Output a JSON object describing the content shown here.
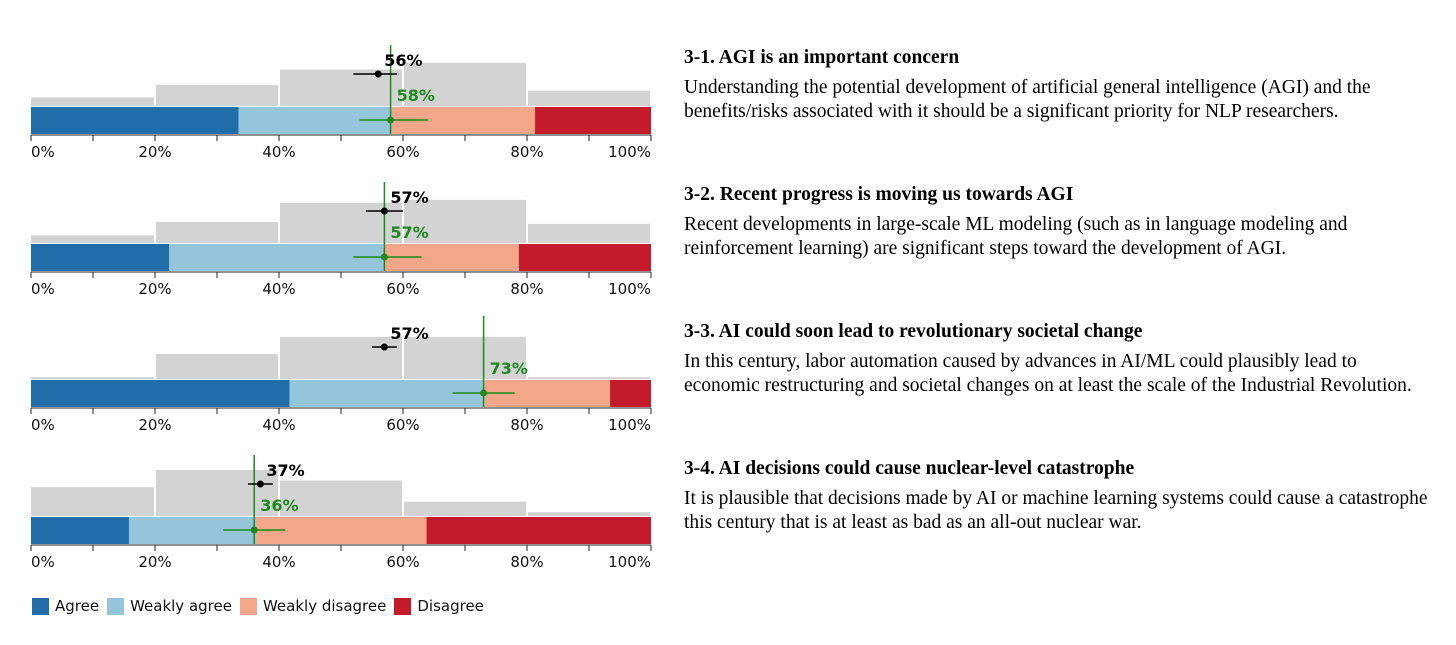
{
  "colors": {
    "agree": "#1f6eaa",
    "weakly_agree": "#95c5da",
    "weakly_disagree": "#f3a688",
    "disagree": "#c31b2a",
    "histogram": "#d3d3d3",
    "predicted": "#000000",
    "actual": "#1d8a1d"
  },
  "legend": [
    {
      "label": "Agree",
      "color": "#1f6eaa"
    },
    {
      "label": "Weakly agree",
      "color": "#95c5da"
    },
    {
      "label": "Weakly disagree",
      "color": "#f3a688"
    },
    {
      "label": "Disagree",
      "color": "#c31b2a"
    }
  ],
  "questions": [
    {
      "title": "3-1. AGI is an important concern",
      "text": "Understanding the potential development of artificial general intelligence (AGI) and the benefits/risks associated with it should be a significant priority for NLP researchers."
    },
    {
      "title": "3-2. Recent progress is moving us towards AGI",
      "text": "Recent developments in large-scale ML modeling (such as in language modeling and reinforcement learning) are significant steps toward the development of AGI."
    },
    {
      "title": "3-3. AI could soon lead to revolutionary societal change",
      "text": "In this century, labor automation caused by advances in AI/ML could plausibly lead to economic restructuring and societal changes on at least the scale of the Industrial Revolution."
    },
    {
      "title": "3-4. AI decisions could cause nuclear-level catastrophe",
      "text": "It is plausible that decisions made by AI or machine learning systems could cause a catastrophe this century that is at least as bad as an all-out nuclear war."
    }
  ],
  "chart_data": [
    {
      "type": "bar",
      "xlim": [
        0,
        100
      ],
      "tick_labels": [
        "0%",
        "20%",
        "40%",
        "60%",
        "80%",
        "100%"
      ],
      "histogram": {
        "bins": [
          "0-20%",
          "20-40%",
          "40-60%",
          "60-80%",
          "80-100%"
        ],
        "values": [
          9,
          22,
          38,
          45,
          16
        ]
      },
      "segments": {
        "Agree": 33.5,
        "Weakly agree": 24.7,
        "Weakly disagree": 23.1,
        "Disagree": 18.7
      },
      "predicted": {
        "value": 56,
        "label": "56%",
        "err": [
          52,
          59
        ]
      },
      "actual": {
        "value": 58,
        "label": "58%",
        "err": [
          53,
          64
        ]
      }
    },
    {
      "type": "bar",
      "xlim": [
        0,
        100
      ],
      "tick_labels": [
        "0%",
        "20%",
        "40%",
        "60%",
        "80%",
        "100%"
      ],
      "histogram": {
        "bins": [
          "0-20%",
          "20-40%",
          "40-60%",
          "60-80%",
          "80-100%"
        ],
        "values": [
          8,
          22,
          42,
          45,
          20
        ]
      },
      "segments": {
        "Agree": 22.3,
        "Weakly agree": 34.8,
        "Weakly disagree": 21.6,
        "Disagree": 21.3
      },
      "predicted": {
        "value": 57,
        "label": "57%",
        "err": [
          54,
          60
        ]
      },
      "actual": {
        "value": 57,
        "label": "57%",
        "err": [
          52,
          63
        ]
      }
    },
    {
      "type": "bar",
      "xlim": [
        0,
        100
      ],
      "tick_labels": [
        "0%",
        "20%",
        "40%",
        "60%",
        "80%",
        "100%"
      ],
      "histogram": {
        "bins": [
          "0-20%",
          "20-40%",
          "40-60%",
          "60-80%",
          "80-100%"
        ],
        "values": [
          2,
          26,
          44,
          44,
          2
        ]
      },
      "segments": {
        "Agree": 41.7,
        "Weakly agree": 31.5,
        "Weakly disagree": 20.2,
        "Disagree": 6.6
      },
      "predicted": {
        "value": 57,
        "label": "57%",
        "err": [
          55,
          59
        ]
      },
      "actual": {
        "value": 73,
        "label": "73%",
        "err": [
          68,
          78
        ]
      }
    },
    {
      "type": "bar",
      "xlim": [
        0,
        100
      ],
      "tick_labels": [
        "0%",
        "20%",
        "40%",
        "60%",
        "80%",
        "100%"
      ],
      "histogram": {
        "bins": [
          "0-20%",
          "20-40%",
          "40-60%",
          "60-80%",
          "80-100%"
        ],
        "values": [
          30,
          48,
          37,
          15,
          4
        ]
      },
      "segments": {
        "Agree": 15.8,
        "Weakly agree": 20.5,
        "Weakly disagree": 27.5,
        "Disagree": 36.2
      },
      "predicted": {
        "value": 37,
        "label": "37%",
        "err": [
          35,
          39
        ]
      },
      "actual": {
        "value": 36,
        "label": "36%",
        "err": [
          31,
          41
        ]
      }
    }
  ]
}
